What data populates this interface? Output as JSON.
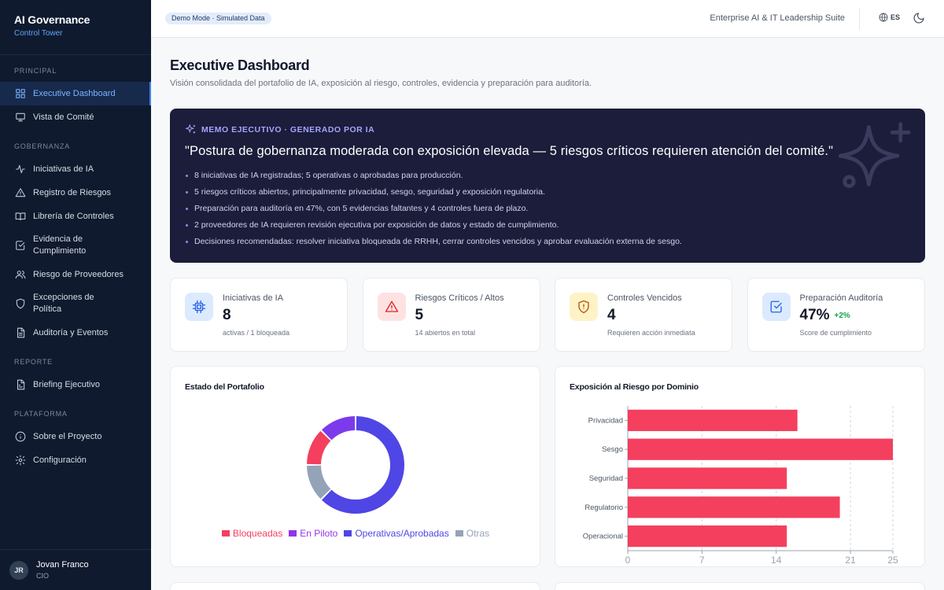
{
  "brand": {
    "title": "AI Governance",
    "subtitle": "Control Tower"
  },
  "sidebar": {
    "sections": [
      {
        "label": "PRINCIPAL",
        "items": [
          {
            "label": "Executive Dashboard",
            "icon": "grid-icon",
            "active": true
          },
          {
            "label": "Vista de Comité",
            "icon": "presentation-icon"
          }
        ]
      },
      {
        "label": "GOBERNANZA",
        "items": [
          {
            "label": "Iniciativas de IA",
            "icon": "activity-icon"
          },
          {
            "label": "Registro de Riesgos",
            "icon": "warning-icon"
          },
          {
            "label": "Librería de Controles",
            "icon": "book-icon"
          },
          {
            "label": "Evidencia de Cumplimiento",
            "icon": "checkbox-icon"
          },
          {
            "label": "Riesgo de Proveedores",
            "icon": "users-icon"
          },
          {
            "label": "Excepciones de Política",
            "icon": "shield-icon"
          },
          {
            "label": "Auditoría y Eventos",
            "icon": "document-icon"
          }
        ]
      },
      {
        "label": "REPORTE",
        "items": [
          {
            "label": "Briefing Ejecutivo",
            "icon": "report-icon"
          }
        ]
      },
      {
        "label": "PLATAFORMA",
        "items": [
          {
            "label": "Sobre el Proyecto",
            "icon": "info-icon"
          },
          {
            "label": "Configuración",
            "icon": "gear-icon"
          }
        ]
      }
    ]
  },
  "user": {
    "initials": "JR",
    "name": "Jovan Franco",
    "role": "CIO"
  },
  "header": {
    "badge": "Demo Mode · Simulated Data",
    "suite": "Enterprise AI & IT Leadership Suite",
    "language": "ES"
  },
  "page": {
    "title": "Executive Dashboard",
    "subtitle": "Visión consolidada del portafolio de IA, exposición al riesgo, controles, evidencia y preparación para auditoría."
  },
  "memo": {
    "heading": "MEMO EJECUTIVO · GENERADO POR IA",
    "quote": "\"Postura de gobernanza moderada con exposición elevada — 5 riesgos críticos requieren atención del comité.\"",
    "bullets": [
      "8 iniciativas de IA registradas; 5 operativas o aprobadas para producción.",
      "5 riesgos críticos abiertos, principalmente privacidad, sesgo, seguridad y exposición regulatoria.",
      "Preparación para auditoría en 47%, con 5 evidencias faltantes y 4 controles fuera de plazo.",
      "2 proveedores de IA requieren revisión ejecutiva por exposición de datos y estado de cumplimiento.",
      "Decisiones recomendadas: resolver iniciativa bloqueada de RRHH, cerrar controles vencidos y aprobar evaluación externa de sesgo."
    ]
  },
  "kpis": [
    {
      "label": "Iniciativas de IA",
      "value": "8",
      "note": "activas / 1 bloqueada",
      "icon": "chip-icon",
      "color": "#2563eb",
      "bg": "#dbeafe"
    },
    {
      "label": "Riesgos Críticos / Altos",
      "value": "5",
      "note": "14 abiertos en total",
      "icon": "warning-icon",
      "color": "#dc2626",
      "bg": "#fee2e2"
    },
    {
      "label": "Controles Vencidos",
      "value": "4",
      "note": "Requieren acción inmediata",
      "icon": "shield-alert-icon",
      "color": "#b45309",
      "bg": "#fef3c7"
    },
    {
      "label": "Preparación Auditoría",
      "value": "47%",
      "delta": "+2%",
      "note": "Score de cumplimiento",
      "icon": "checkbox-icon",
      "color": "#2563eb",
      "bg": "#dbeafe"
    }
  ],
  "portfolio": {
    "title": "Estado del Portafolio",
    "chart_data": {
      "type": "pie",
      "slices": [
        {
          "name": "Operativas/Aprobadas",
          "value": 5,
          "color": "#4f46e5"
        },
        {
          "name": "Otras",
          "value": 1,
          "color": "#94a3b8"
        },
        {
          "name": "Bloqueadas",
          "value": 1,
          "color": "#f43f5e"
        },
        {
          "name": "En Piloto",
          "value": 1,
          "color": "#7c3aed"
        }
      ],
      "legend": [
        "Bloqueadas",
        "En Piloto",
        "Operativas/Aprobadas",
        "Otras"
      ],
      "legend_colors": [
        "#f43f5e",
        "#9333ea",
        "#4f46e5",
        "#94a3b8"
      ],
      "legend_position": "bottom"
    }
  },
  "risk_exposure": {
    "title": "Exposición al Riesgo por Dominio",
    "chart_data": {
      "type": "bar",
      "orientation": "horizontal",
      "categories": [
        "Privacidad",
        "Sesgo",
        "Seguridad",
        "Regulatorio",
        "Operacional"
      ],
      "values": [
        16,
        25,
        15,
        20,
        15
      ],
      "xlim": [
        0,
        25
      ],
      "xticks": [
        "0",
        "7",
        "14",
        "21",
        "25"
      ],
      "color": "#f43f5e",
      "grid": true
    }
  }
}
